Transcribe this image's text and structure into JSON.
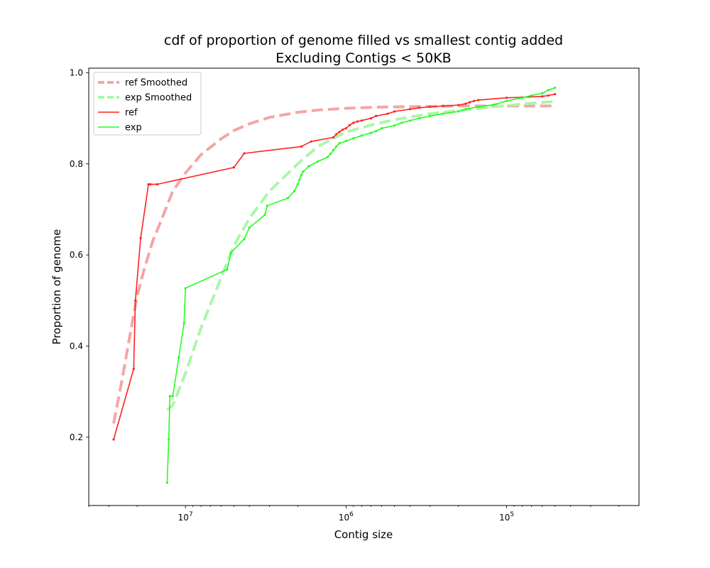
{
  "chart_data": {
    "type": "line",
    "title": "cdf of proportion of genome filled vs smallest contig added",
    "subtitle": "Excluding Contigs < 50KB",
    "xlabel": "Contig size",
    "ylabel": "Proportion of genome",
    "x_scale": "log",
    "x_axis_inverted": true,
    "xlim": [
      40000000,
      15000
    ],
    "ylim": [
      0.05,
      1.01
    ],
    "x_ticks": [
      {
        "value": 10000000,
        "base": "10",
        "exp": "7"
      },
      {
        "value": 1000000,
        "base": "10",
        "exp": "6"
      },
      {
        "value": 100000,
        "base": "10",
        "exp": "5"
      }
    ],
    "y_ticks": [
      0.2,
      0.4,
      0.6,
      0.8,
      1.0
    ],
    "y_tick_labels": [
      "0.2",
      "0.4",
      "0.6",
      "0.8",
      "1.0"
    ],
    "legend_position": "top-left",
    "grid": false,
    "series": [
      {
        "name": "ref Smoothed",
        "style": "dashed",
        "color": "#f4a6a6",
        "x": [
          28000000,
          25000000,
          22000000,
          20000000,
          18000000,
          16000000,
          14000000,
          12000000,
          10000000,
          8000000,
          6000000,
          5000000,
          4000000,
          3000000,
          2000000,
          1500000,
          1000000,
          700000,
          500000,
          300000,
          200000,
          120000,
          80000,
          50000
        ],
        "y": [
          0.23,
          0.32,
          0.43,
          0.51,
          0.57,
          0.63,
          0.68,
          0.74,
          0.78,
          0.82,
          0.855,
          0.873,
          0.888,
          0.902,
          0.913,
          0.918,
          0.922,
          0.924,
          0.925,
          0.926,
          0.927,
          0.927,
          0.927,
          0.927
        ]
      },
      {
        "name": "exp Smoothed",
        "style": "dashed",
        "color": "#aaf7aa",
        "x": [
          13000000,
          12000000,
          10000000,
          8000000,
          6000000,
          5000000,
          4000000,
          3000000,
          2000000,
          1500000,
          1000000,
          700000,
          500000,
          300000,
          200000,
          100000,
          70000,
          50000
        ],
        "y": [
          0.26,
          0.27,
          0.34,
          0.44,
          0.55,
          0.62,
          0.68,
          0.74,
          0.8,
          0.838,
          0.87,
          0.885,
          0.897,
          0.91,
          0.917,
          0.928,
          0.933,
          0.937
        ]
      },
      {
        "name": "ref",
        "style": "solid",
        "color": "#ff2222",
        "x": [
          28000000,
          21000000,
          20500000,
          19000000,
          17000000,
          16500000,
          15000000,
          5000000,
          4300000,
          1900000,
          1650000,
          1200000,
          1150000,
          1100000,
          1050000,
          1000000,
          950000,
          900000,
          850000,
          800000,
          700000,
          650000,
          550000,
          500000,
          400000,
          350000,
          300000,
          250000,
          200000,
          180000,
          170000,
          160000,
          150000,
          100000,
          80000,
          60000,
          55000,
          50000
        ],
        "y": [
          0.195,
          0.35,
          0.5,
          0.637,
          0.755,
          0.755,
          0.755,
          0.792,
          0.823,
          0.838,
          0.849,
          0.858,
          0.865,
          0.87,
          0.875,
          0.878,
          0.885,
          0.89,
          0.893,
          0.895,
          0.9,
          0.905,
          0.91,
          0.915,
          0.92,
          0.923,
          0.925,
          0.927,
          0.929,
          0.932,
          0.935,
          0.938,
          0.94,
          0.945,
          0.946,
          0.948,
          0.95,
          0.953
        ]
      },
      {
        "name": "exp",
        "style": "solid",
        "color": "#22ff22",
        "x": [
          13000000,
          12700000,
          12500000,
          12000000,
          11000000,
          10200000,
          10000000,
          5500000,
          5200000,
          4300000,
          4000000,
          3200000,
          3100000,
          2300000,
          2100000,
          2000000,
          1950000,
          1900000,
          1850000,
          1700000,
          1500000,
          1300000,
          1250000,
          1200000,
          1150000,
          1100000,
          1000000,
          900000,
          800000,
          700000,
          650000,
          600000,
          500000,
          450000,
          400000,
          350000,
          300000,
          250000,
          200000,
          180000,
          150000,
          120000,
          100000,
          80000,
          70000,
          60000,
          55000,
          50000
        ],
        "y": [
          0.1,
          0.195,
          0.29,
          0.29,
          0.375,
          0.45,
          0.527,
          0.568,
          0.605,
          0.635,
          0.66,
          0.688,
          0.708,
          0.725,
          0.74,
          0.755,
          0.765,
          0.775,
          0.783,
          0.795,
          0.805,
          0.815,
          0.822,
          0.83,
          0.838,
          0.845,
          0.85,
          0.856,
          0.862,
          0.868,
          0.872,
          0.878,
          0.884,
          0.89,
          0.895,
          0.9,
          0.905,
          0.91,
          0.915,
          0.92,
          0.925,
          0.93,
          0.938,
          0.945,
          0.95,
          0.955,
          0.962,
          0.967
        ]
      }
    ]
  }
}
